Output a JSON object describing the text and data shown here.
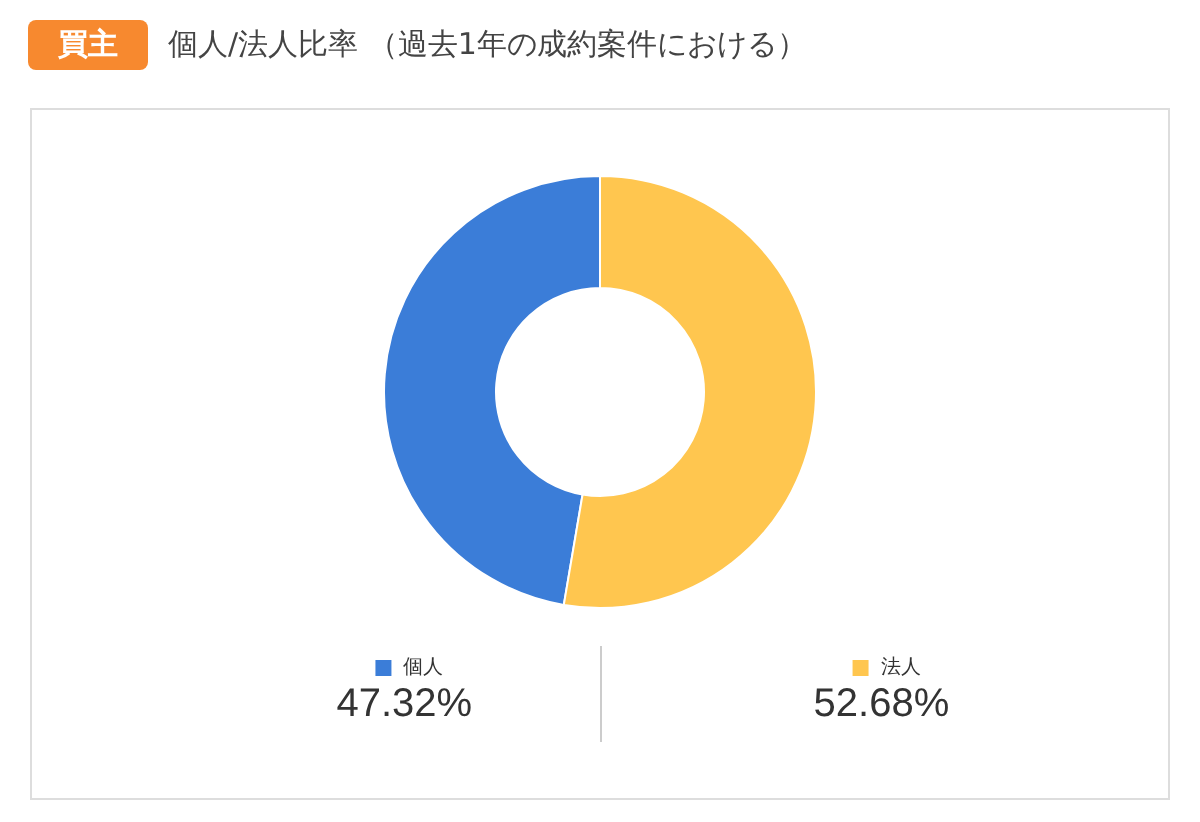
{
  "chart_data": {
    "type": "donut",
    "title": "買主",
    "subtitle": "個人/法人比率 （過去1年の成約案件における）",
    "categories": [
      "個人",
      "法人"
    ],
    "values": [
      47.32,
      52.68
    ],
    "colors": [
      "#3b7dd8",
      "#ffc64f"
    ],
    "value_labels": [
      "47.32%",
      "52.68%"
    ],
    "legend": "bottom"
  }
}
